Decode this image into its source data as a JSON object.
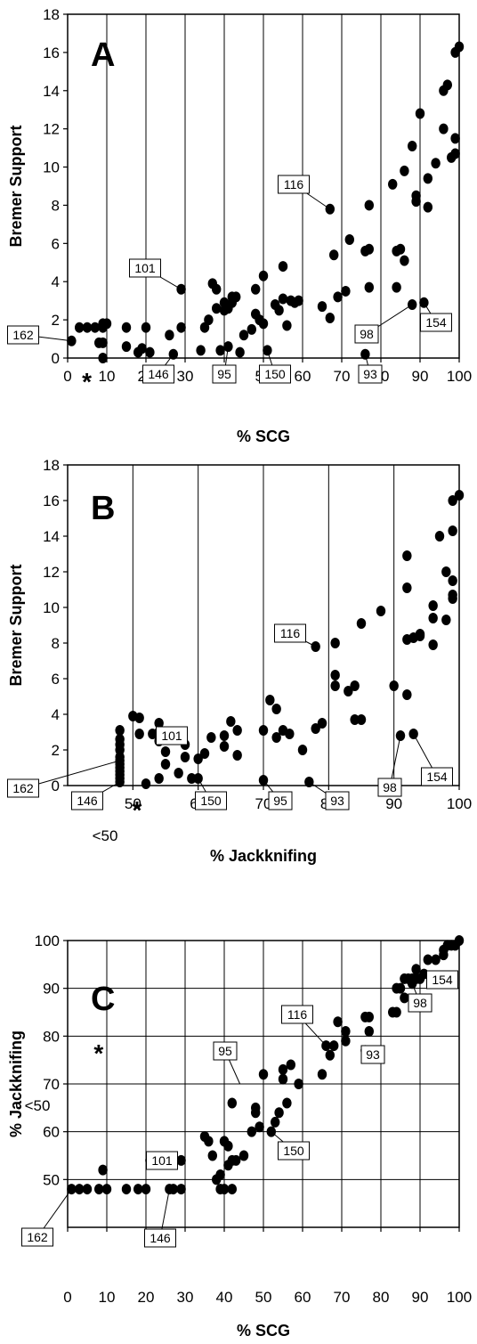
{
  "chart_data": [
    {
      "id": "A",
      "type": "scatter",
      "panel_label": "A",
      "xlabel": "% SCG",
      "ylabel": "Bremer Support",
      "xlim": [
        0,
        100
      ],
      "ylim": [
        0,
        18
      ],
      "xticks": [
        "0",
        "10",
        "20",
        "30",
        "40",
        "50",
        "60",
        "70",
        "80",
        "90",
        "100"
      ],
      "yticks": [
        "0",
        "2",
        "4",
        "6",
        "8",
        "10",
        "12",
        "14",
        "16",
        "18"
      ],
      "grid": "vertical",
      "points": [
        [
          1,
          0.9
        ],
        [
          3,
          1.6
        ],
        [
          5,
          1.6
        ],
        [
          7,
          1.6
        ],
        [
          8,
          0.8
        ],
        [
          9,
          1.6
        ],
        [
          9,
          0.8
        ],
        [
          9,
          0
        ],
        [
          10,
          1.8
        ],
        [
          9,
          1.8
        ],
        [
          15,
          1.6
        ],
        [
          15,
          0.6
        ],
        [
          18,
          0.3
        ],
        [
          19,
          0.5
        ],
        [
          20,
          1.6
        ],
        [
          21,
          0.3
        ],
        [
          26,
          1.2
        ],
        [
          27,
          0.2
        ],
        [
          29,
          1.6
        ],
        [
          29,
          3.6
        ],
        [
          34,
          0.4
        ],
        [
          35,
          1.6
        ],
        [
          36,
          2
        ],
        [
          37,
          3.9
        ],
        [
          38,
          3.6
        ],
        [
          38,
          2.6
        ],
        [
          39,
          0.4
        ],
        [
          40,
          2.9
        ],
        [
          40,
          2.5
        ],
        [
          41,
          2.6
        ],
        [
          41,
          0.6
        ],
        [
          42,
          3.2
        ],
        [
          42,
          2.9
        ],
        [
          43,
          3.2
        ],
        [
          44,
          0.3
        ],
        [
          45,
          1.2
        ],
        [
          47,
          1.5
        ],
        [
          48,
          2.3
        ],
        [
          48,
          3.6
        ],
        [
          49,
          2
        ],
        [
          50,
          1.8
        ],
        [
          50,
          4.3
        ],
        [
          51,
          0.4
        ],
        [
          53,
          2.8
        ],
        [
          54,
          2.5
        ],
        [
          55,
          4.8
        ],
        [
          55,
          3.1
        ],
        [
          56,
          1.7
        ],
        [
          57,
          3
        ],
        [
          58,
          2.9
        ],
        [
          59,
          3
        ],
        [
          65,
          2.7
        ],
        [
          67,
          7.8
        ],
        [
          67,
          2.1
        ],
        [
          68,
          5.4
        ],
        [
          69,
          3.2
        ],
        [
          71,
          3.5
        ],
        [
          72,
          6.2
        ],
        [
          76,
          5.6
        ],
        [
          77,
          5.7
        ],
        [
          77,
          8
        ],
        [
          77,
          3.7
        ],
        [
          76,
          0.2
        ],
        [
          83,
          9.1
        ],
        [
          84,
          5.6
        ],
        [
          84,
          3.7
        ],
        [
          85,
          5.7
        ],
        [
          86,
          5.1
        ],
        [
          86,
          9.8
        ],
        [
          88,
          11.1
        ],
        [
          89,
          8.5
        ],
        [
          89,
          8.2
        ],
        [
          90,
          12.8
        ],
        [
          88,
          2.8
        ],
        [
          92,
          7.9
        ],
        [
          92,
          9.4
        ],
        [
          94,
          10.2
        ],
        [
          96,
          12
        ],
        [
          96,
          14
        ],
        [
          97,
          14.3
        ],
        [
          98,
          10.5
        ],
        [
          99,
          10.7
        ],
        [
          99,
          11.5
        ],
        [
          99,
          16
        ],
        [
          100,
          16.3
        ],
        [
          91,
          2.9
        ]
      ],
      "annotations": [
        {
          "label": "162",
          "x": 1,
          "y": 0.9
        },
        {
          "label": "101",
          "x": 29,
          "y": 3.6
        },
        {
          "label": "146",
          "x": 27,
          "y": 0.2
        },
        {
          "label": "95",
          "x": 41,
          "y": 0.6
        },
        {
          "label": "150",
          "x": 51,
          "y": 0.4
        },
        {
          "label": "116",
          "x": 67,
          "y": 7.8
        },
        {
          "label": "93",
          "x": 76,
          "y": 0.2
        },
        {
          "label": "98",
          "x": 88,
          "y": 2.8
        },
        {
          "label": "154",
          "x": 91,
          "y": 2.9
        }
      ],
      "star": "*",
      "star_x": 4
    },
    {
      "id": "B",
      "type": "scatter",
      "panel_label": "B",
      "xlabel": "% Jackknifing",
      "ylabel": "Bremer Support",
      "xlim": [
        40,
        100
      ],
      "ylim": [
        0,
        18
      ],
      "xticks": [
        "50",
        "60",
        "70",
        "80",
        "90",
        "100"
      ],
      "yticks": [
        "0",
        "2",
        "4",
        "6",
        "8",
        "10",
        "12",
        "14",
        "16",
        "18"
      ],
      "extra_xtick": "<50",
      "grid": "vertical",
      "points": [
        [
          48,
          0.2
        ],
        [
          48,
          0.4
        ],
        [
          48,
          0.6
        ],
        [
          48,
          0.8
        ],
        [
          48,
          1
        ],
        [
          48,
          1.2
        ],
        [
          48,
          1.4
        ],
        [
          48,
          1.6
        ],
        [
          48,
          2
        ],
        [
          48,
          2.3
        ],
        [
          48,
          2.6
        ],
        [
          48,
          3.1
        ],
        [
          50,
          3.9
        ],
        [
          51,
          3.8
        ],
        [
          51,
          2.9
        ],
        [
          52,
          0.1
        ],
        [
          53,
          2.9
        ],
        [
          54,
          3.5
        ],
        [
          54,
          3
        ],
        [
          54,
          2.5
        ],
        [
          54,
          0.4
        ],
        [
          55,
          1.2
        ],
        [
          55,
          1.9
        ],
        [
          57,
          0.7
        ],
        [
          58,
          2.3
        ],
        [
          58,
          1.6
        ],
        [
          59,
          0.4
        ],
        [
          60,
          0.4
        ],
        [
          60,
          1.5
        ],
        [
          61,
          1.8
        ],
        [
          62,
          2.7
        ],
        [
          64,
          2.2
        ],
        [
          64,
          2.8
        ],
        [
          65,
          3.6
        ],
        [
          66,
          3.1
        ],
        [
          66,
          1.7
        ],
        [
          70,
          0.3
        ],
        [
          70,
          3.1
        ],
        [
          71,
          4.8
        ],
        [
          72,
          4.3
        ],
        [
          72,
          2.7
        ],
        [
          73,
          3.1
        ],
        [
          74,
          2.9
        ],
        [
          76,
          2
        ],
        [
          77,
          0.2
        ],
        [
          78,
          7.8
        ],
        [
          78,
          3.2
        ],
        [
          79,
          3.5
        ],
        [
          81,
          8
        ],
        [
          81,
          6.2
        ],
        [
          81,
          5.6
        ],
        [
          83,
          5.3
        ],
        [
          84,
          5.6
        ],
        [
          84,
          3.7
        ],
        [
          85,
          3.7
        ],
        [
          85,
          9.1
        ],
        [
          88,
          9.8
        ],
        [
          90,
          5.6
        ],
        [
          91,
          2.8
        ],
        [
          92,
          5.1
        ],
        [
          92,
          8.2
        ],
        [
          92,
          11.1
        ],
        [
          92,
          12.9
        ],
        [
          93,
          8.3
        ],
        [
          93,
          2.9
        ],
        [
          94,
          8.5
        ],
        [
          94,
          8.4
        ],
        [
          96,
          9.4
        ],
        [
          96,
          10.1
        ],
        [
          96,
          7.9
        ],
        [
          97,
          14
        ],
        [
          98,
          12
        ],
        [
          98,
          9.3
        ],
        [
          99,
          11.5
        ],
        [
          99,
          10.7
        ],
        [
          99,
          10.5
        ],
        [
          99,
          14.3
        ],
        [
          99,
          16
        ],
        [
          100,
          16.3
        ]
      ],
      "annotations": [
        {
          "label": "101",
          "x": 54,
          "y": 3.5
        },
        {
          "label": "162",
          "x": 48,
          "y": 1.4
        },
        {
          "label": "146",
          "x": 48,
          "y": 0.2
        },
        {
          "label": "150",
          "x": 60,
          "y": 0.4
        },
        {
          "label": "95",
          "x": 70,
          "y": 0.3
        },
        {
          "label": "93",
          "x": 77,
          "y": 0.2
        },
        {
          "label": "116",
          "x": 78,
          "y": 7.8
        },
        {
          "label": "98",
          "x": 91,
          "y": 2.8
        },
        {
          "label": "154",
          "x": 93,
          "y": 2.9
        }
      ],
      "star": "*",
      "star_x": 52
    },
    {
      "id": "C",
      "type": "scatter",
      "panel_label": "C",
      "xlabel": "% SCG",
      "ylabel": "% Jackknifing",
      "xlim": [
        0,
        100
      ],
      "ylim": [
        40,
        100
      ],
      "xticks": [
        "0",
        "10",
        "20",
        "30",
        "40",
        "50",
        "60",
        "70",
        "80",
        "90",
        "100"
      ],
      "yticks": [
        "50",
        "60",
        "70",
        "80",
        "90",
        "100"
      ],
      "extra_ytick": "<50",
      "grid": "both",
      "points": [
        [
          1,
          48
        ],
        [
          3,
          48
        ],
        [
          5,
          48
        ],
        [
          8,
          48
        ],
        [
          10,
          48
        ],
        [
          9,
          52
        ],
        [
          15,
          48
        ],
        [
          18,
          48
        ],
        [
          20,
          48
        ],
        [
          21,
          54
        ],
        [
          26,
          48
        ],
        [
          27,
          48
        ],
        [
          29,
          48
        ],
        [
          29,
          54
        ],
        [
          35,
          59
        ],
        [
          36,
          58
        ],
        [
          37,
          55
        ],
        [
          38,
          50
        ],
        [
          39,
          51
        ],
        [
          39,
          48
        ],
        [
          40,
          58
        ],
        [
          40,
          48
        ],
        [
          41,
          57
        ],
        [
          41,
          53
        ],
        [
          42,
          48
        ],
        [
          42,
          54
        ],
        [
          42,
          66
        ],
        [
          43,
          54
        ],
        [
          45,
          55
        ],
        [
          47,
          60
        ],
        [
          48,
          65
        ],
        [
          48,
          64
        ],
        [
          49,
          61
        ],
        [
          50,
          72
        ],
        [
          52,
          60
        ],
        [
          53,
          62
        ],
        [
          54,
          64
        ],
        [
          55,
          71
        ],
        [
          55,
          73
        ],
        [
          56,
          66
        ],
        [
          57,
          74
        ],
        [
          59,
          70
        ],
        [
          65,
          72
        ],
        [
          66,
          78
        ],
        [
          67,
          76
        ],
        [
          68,
          78
        ],
        [
          69,
          83
        ],
        [
          71,
          79
        ],
        [
          71,
          81
        ],
        [
          76,
          84
        ],
        [
          77,
          84
        ],
        [
          76,
          77
        ],
        [
          77,
          81
        ],
        [
          83,
          85
        ],
        [
          84,
          85
        ],
        [
          84,
          90
        ],
        [
          85,
          90
        ],
        [
          86,
          88
        ],
        [
          86,
          92
        ],
        [
          87,
          92
        ],
        [
          88,
          91
        ],
        [
          88,
          92
        ],
        [
          89,
          92
        ],
        [
          89,
          94
        ],
        [
          90,
          92
        ],
        [
          91,
          93
        ],
        [
          92,
          96
        ],
        [
          94,
          96
        ],
        [
          96,
          97
        ],
        [
          96,
          98
        ],
        [
          97,
          99
        ],
        [
          98,
          99
        ],
        [
          99,
          99
        ],
        [
          100,
          100
        ]
      ],
      "annotations": [
        {
          "label": "162",
          "x": 1,
          "y": 48
        },
        {
          "label": "101",
          "x": 29,
          "y": 54
        },
        {
          "label": "146",
          "x": 26,
          "y": 48
        },
        {
          "label": "95",
          "x": 44,
          "y": 70
        },
        {
          "label": "150",
          "x": 52,
          "y": 60
        },
        {
          "label": "116",
          "x": 66,
          "y": 78
        },
        {
          "label": "93",
          "x": 76,
          "y": 77
        },
        {
          "label": "98",
          "x": 88,
          "y": 91
        },
        {
          "label": "154",
          "x": 91,
          "y": 93
        }
      ],
      "star": "*",
      "star_x": 7
    }
  ]
}
